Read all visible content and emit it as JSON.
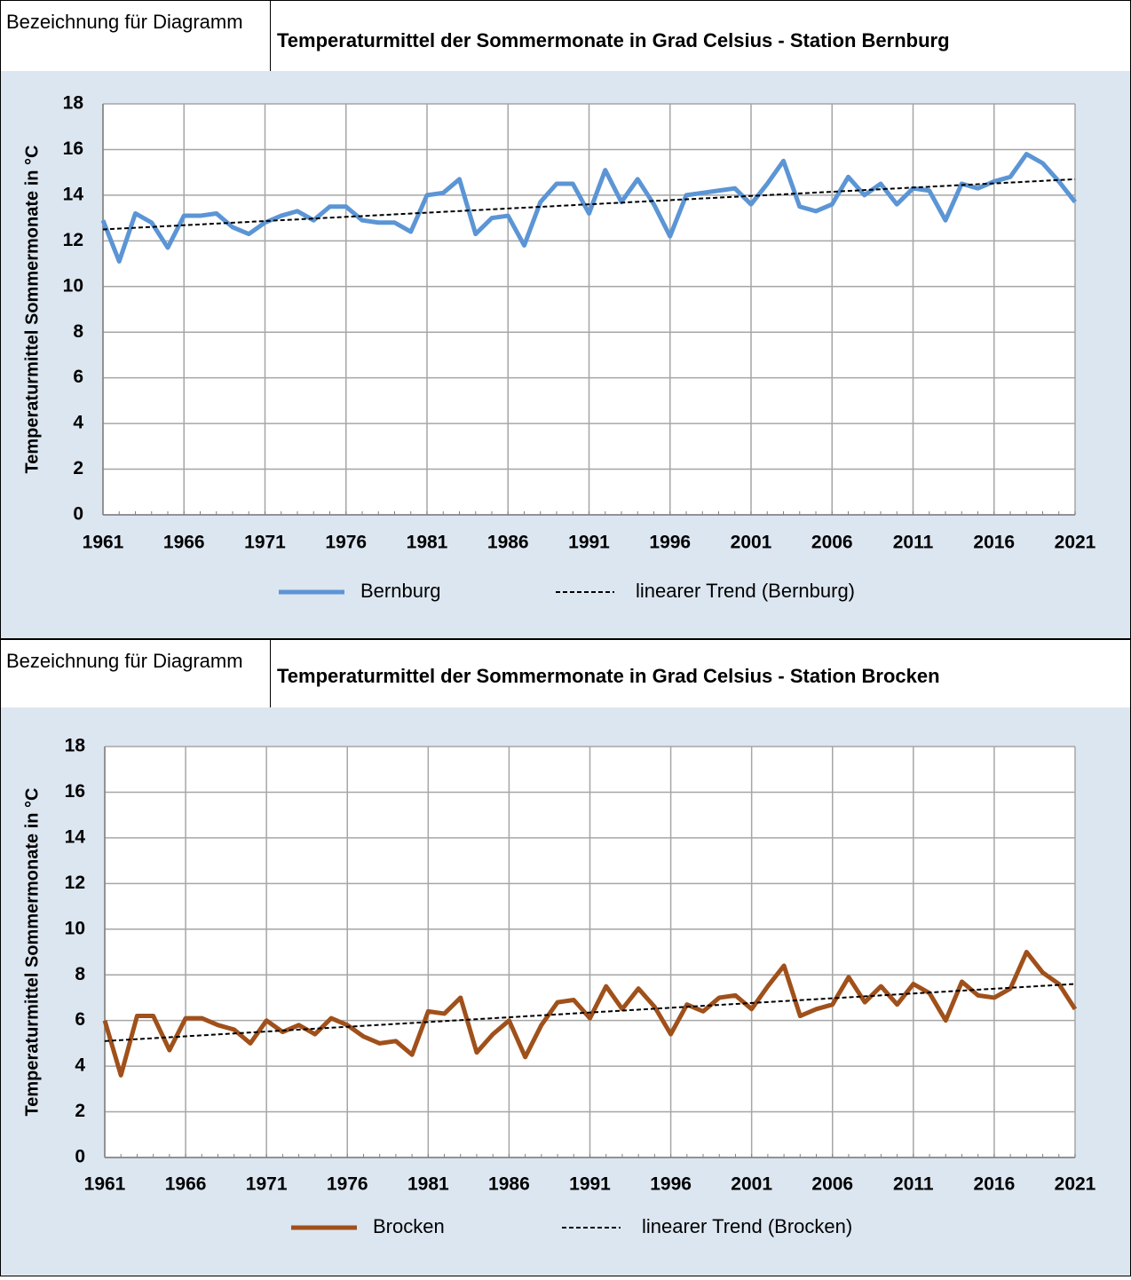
{
  "chart_data": [
    {
      "type": "line",
      "header_label": "Bezeichnung für Diagramm",
      "title": "Temperaturmittel der Sommermonate in Grad Celsius - Station Bernburg",
      "y_label": "Temperaturmittel Sommermonate in °C",
      "x": [
        1961,
        1962,
        1963,
        1964,
        1965,
        1966,
        1967,
        1968,
        1969,
        1970,
        1971,
        1972,
        1973,
        1974,
        1975,
        1976,
        1977,
        1978,
        1979,
        1980,
        1981,
        1982,
        1983,
        1984,
        1985,
        1986,
        1987,
        1988,
        1989,
        1990,
        1991,
        1992,
        1993,
        1994,
        1995,
        1996,
        1997,
        1998,
        1999,
        2000,
        2001,
        2002,
        2003,
        2004,
        2005,
        2006,
        2007,
        2008,
        2009,
        2010,
        2011,
        2012,
        2013,
        2014,
        2015,
        2016,
        2017,
        2018,
        2019,
        2020,
        2021
      ],
      "series": [
        {
          "name": "Bernburg",
          "color": "#5b95d5",
          "values": [
            12.9,
            11.1,
            13.2,
            12.8,
            11.7,
            13.1,
            13.1,
            13.2,
            12.6,
            12.3,
            12.8,
            13.1,
            13.3,
            12.9,
            13.5,
            13.5,
            12.9,
            12.8,
            12.8,
            12.4,
            14.0,
            14.1,
            14.7,
            12.3,
            13.0,
            13.1,
            11.8,
            13.7,
            14.5,
            14.5,
            13.2,
            15.1,
            13.7,
            14.7,
            13.6,
            12.2,
            14.0,
            14.1,
            14.2,
            14.3,
            13.6,
            14.5,
            15.5,
            13.5,
            13.3,
            13.6,
            14.8,
            14.0,
            14.5,
            13.6,
            14.3,
            14.2,
            12.9,
            14.5,
            14.3,
            14.6,
            14.8,
            15.8,
            15.4,
            14.6,
            13.7
          ]
        },
        {
          "name": "linearer Trend (Bernburg)",
          "color": "#000000",
          "dashed": true,
          "x": [
            1961,
            2021
          ],
          "values": [
            12.5,
            14.7
          ]
        }
      ],
      "xlim": [
        1961,
        2021
      ],
      "xticks": [
        1961,
        1966,
        1971,
        1976,
        1981,
        1986,
        1991,
        1996,
        2001,
        2006,
        2011,
        2016,
        2021
      ],
      "ylim": [
        0,
        18
      ],
      "yticks": [
        0,
        2,
        4,
        6,
        8,
        10,
        12,
        14,
        16,
        18
      ],
      "grid": true
    },
    {
      "type": "line",
      "header_label": "Bezeichnung für Diagramm",
      "title": "Temperaturmittel der Sommermonate in Grad Celsius - Station Brocken",
      "y_label": "Temperaturmittel Sommermonate in °C",
      "x": [
        1961,
        1962,
        1963,
        1964,
        1965,
        1966,
        1967,
        1968,
        1969,
        1970,
        1971,
        1972,
        1973,
        1974,
        1975,
        1976,
        1977,
        1978,
        1979,
        1980,
        1981,
        1982,
        1983,
        1984,
        1985,
        1986,
        1987,
        1988,
        1989,
        1990,
        1991,
        1992,
        1993,
        1994,
        1995,
        1996,
        1997,
        1998,
        1999,
        2000,
        2001,
        2002,
        2003,
        2004,
        2005,
        2006,
        2007,
        2008,
        2009,
        2010,
        2011,
        2012,
        2013,
        2014,
        2015,
        2016,
        2017,
        2018,
        2019,
        2020,
        2021
      ],
      "series": [
        {
          "name": "Brocken",
          "color": "#a0501a",
          "values": [
            6.0,
            3.6,
            6.2,
            6.2,
            4.7,
            6.1,
            6.1,
            5.8,
            5.6,
            5.0,
            6.0,
            5.5,
            5.8,
            5.4,
            6.1,
            5.8,
            5.3,
            5.0,
            5.1,
            4.5,
            6.4,
            6.3,
            7.0,
            4.6,
            5.4,
            6.0,
            4.4,
            5.8,
            6.8,
            6.9,
            6.1,
            7.5,
            6.5,
            7.4,
            6.6,
            5.4,
            6.7,
            6.4,
            7.0,
            7.1,
            6.5,
            7.5,
            8.4,
            6.2,
            6.5,
            6.7,
            7.9,
            6.8,
            7.5,
            6.7,
            7.6,
            7.2,
            6.0,
            7.7,
            7.1,
            7.0,
            7.4,
            9.0,
            8.1,
            7.6,
            6.5
          ]
        },
        {
          "name": "linearer Trend (Brocken)",
          "color": "#000000",
          "dashed": true,
          "x": [
            1961,
            2021
          ],
          "values": [
            5.1,
            7.6
          ]
        }
      ],
      "xlim": [
        1961,
        2021
      ],
      "xticks": [
        1961,
        1966,
        1971,
        1976,
        1981,
        1986,
        1991,
        1996,
        2001,
        2006,
        2011,
        2016,
        2021
      ],
      "ylim": [
        0,
        18
      ],
      "yticks": [
        0,
        2,
        4,
        6,
        8,
        10,
        12,
        14,
        16,
        18
      ],
      "grid": true
    }
  ]
}
